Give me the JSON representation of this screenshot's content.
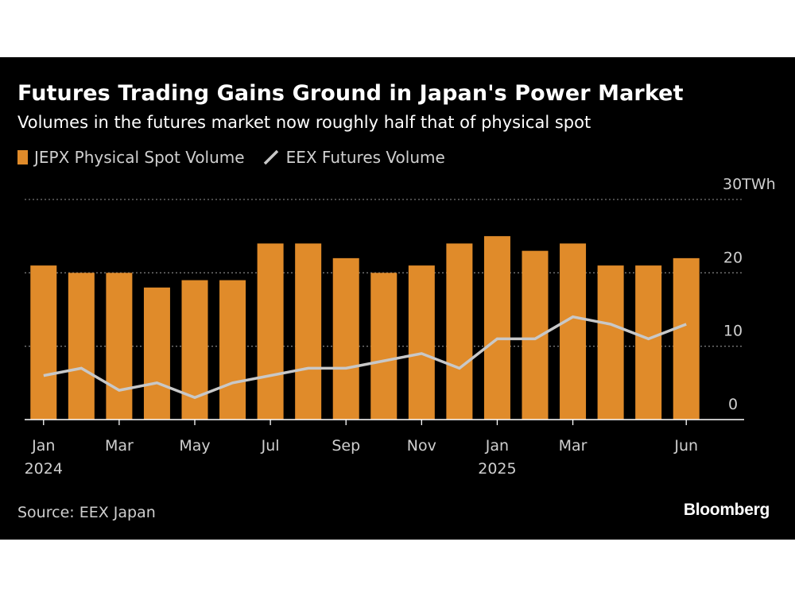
{
  "header": {
    "title": "Futures Trading Gains Ground in Japan's Power Market",
    "subtitle": "Volumes in the futures market now roughly half that of physical spot"
  },
  "legend": {
    "items": [
      {
        "label": "JEPX Physical Spot Volume",
        "color": "#e08b2a",
        "kind": "bar"
      },
      {
        "label": "EEX Futures Volume",
        "color": "#c8c8c8",
        "kind": "line"
      }
    ]
  },
  "footer": {
    "source": "Source: EEX Japan",
    "brand": "Bloomberg"
  },
  "colors": {
    "background": "#000000",
    "bar": "#e08b2a",
    "line": "#c8c8c8",
    "text": "#ffffff",
    "muted_text": "#cfcfcf",
    "grid": "#777777"
  },
  "chart_data": {
    "type": "bar",
    "categories": [
      "2024-01",
      "2024-02",
      "2024-03",
      "2024-04",
      "2024-05",
      "2024-06",
      "2024-07",
      "2024-08",
      "2024-09",
      "2024-10",
      "2024-11",
      "2024-12",
      "2025-01",
      "2025-02",
      "2025-03",
      "2025-04",
      "2025-05",
      "2025-06"
    ],
    "series": [
      {
        "name": "JEPX Physical Spot Volume",
        "type": "bar",
        "values": [
          21,
          20,
          20,
          18,
          19,
          19,
          24,
          24,
          22,
          20,
          21,
          24,
          25,
          23,
          24,
          21,
          21,
          22
        ]
      },
      {
        "name": "EEX Futures Volume",
        "type": "line",
        "values": [
          6,
          7,
          4,
          5,
          3,
          5,
          6,
          7,
          7,
          8,
          9,
          7,
          11,
          11,
          14,
          13,
          11,
          13
        ]
      }
    ],
    "x_tick_labels": [
      {
        "category": "2024-01",
        "label": "Jan",
        "year": "2024"
      },
      {
        "category": "2024-03",
        "label": "Mar",
        "year": ""
      },
      {
        "category": "2024-05",
        "label": "May",
        "year": ""
      },
      {
        "category": "2024-07",
        "label": "Jul",
        "year": ""
      },
      {
        "category": "2024-09",
        "label": "Sep",
        "year": ""
      },
      {
        "category": "2024-11",
        "label": "Nov",
        "year": ""
      },
      {
        "category": "2025-01",
        "label": "Jan",
        "year": "2025"
      },
      {
        "category": "2025-03",
        "label": "Mar",
        "year": ""
      },
      {
        "category": "2025-06",
        "label": "Jun",
        "year": ""
      }
    ],
    "y_ticks": [
      {
        "value": 0,
        "label": "0"
      },
      {
        "value": 10,
        "label": "10"
      },
      {
        "value": 20,
        "label": "20"
      },
      {
        "value": 30,
        "label": "30TWh"
      }
    ],
    "ylim": [
      0,
      30
    ],
    "grid": true,
    "y_axis_position": "right",
    "legend_position": "top-left"
  }
}
